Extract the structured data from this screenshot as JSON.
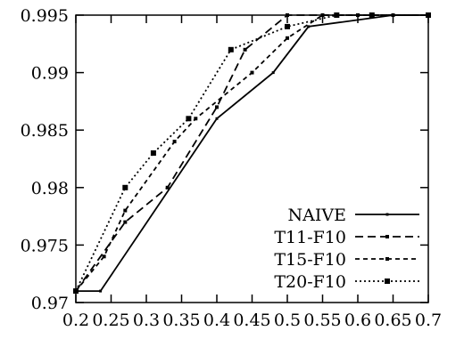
{
  "chart_data": {
    "type": "line",
    "title": "",
    "xlabel": "",
    "ylabel": "",
    "xlim": [
      0.2,
      0.7
    ],
    "ylim": [
      0.97,
      0.995
    ],
    "x_ticks": [
      "0.2",
      "0.25",
      "0.3",
      "0.35",
      "0.4",
      "0.45",
      "0.5",
      "0.55",
      "0.6",
      "0.65",
      "0.7"
    ],
    "y_ticks": [
      "0.97",
      "0.975",
      "0.98",
      "0.985",
      "0.99",
      "0.995"
    ],
    "grid": false,
    "legend": "bottom-right",
    "series": [
      {
        "name": "NAIVE",
        "style": "solid",
        "color": "#000000",
        "x": [
          0.2,
          0.235,
          0.4,
          0.48,
          0.53,
          0.65,
          0.7
        ],
        "y": [
          0.971,
          0.971,
          0.986,
          0.99,
          0.994,
          0.995,
          0.995
        ]
      },
      {
        "name": "T11-F10",
        "style": "dashed",
        "color": "#000000",
        "x": [
          0.2,
          0.27,
          0.33,
          0.4,
          0.44,
          0.5,
          0.6,
          0.7
        ],
        "y": [
          0.971,
          0.977,
          0.98,
          0.987,
          0.992,
          0.995,
          0.995,
          0.995
        ]
      },
      {
        "name": "T15-F10",
        "style": "dash-dot",
        "color": "#000000",
        "x": [
          0.2,
          0.24,
          0.27,
          0.34,
          0.37,
          0.45,
          0.5,
          0.55,
          0.6,
          0.65,
          0.7
        ],
        "y": [
          0.971,
          0.974,
          0.978,
          0.984,
          0.986,
          0.99,
          0.993,
          0.995,
          0.995,
          0.995,
          0.995
        ]
      },
      {
        "name": "T20-F10",
        "style": "dotted",
        "color": "#000000",
        "x": [
          0.2,
          0.27,
          0.31,
          0.36,
          0.42,
          0.5,
          0.57,
          0.62,
          0.7
        ],
        "y": [
          0.971,
          0.98,
          0.983,
          0.986,
          0.992,
          0.994,
          0.995,
          0.995,
          0.995
        ]
      }
    ]
  }
}
